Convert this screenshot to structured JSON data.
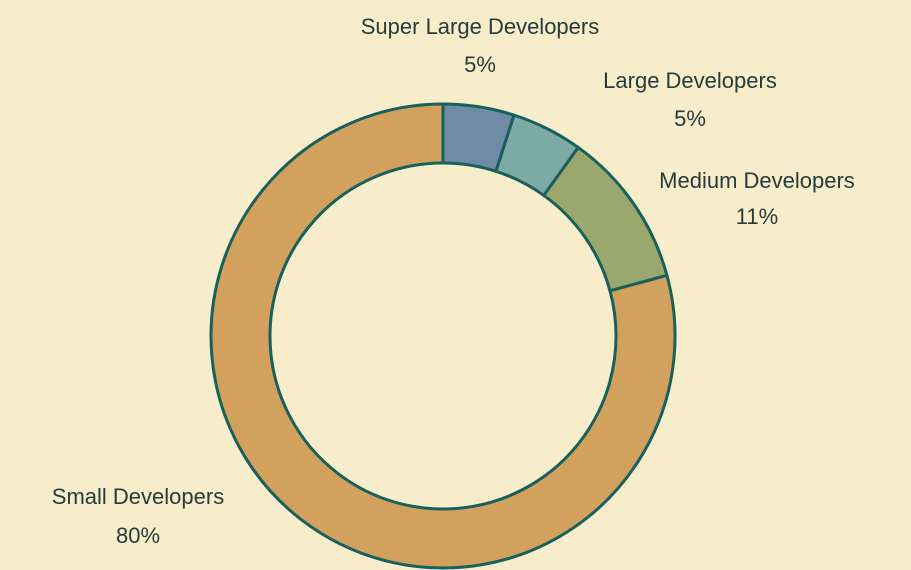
{
  "chart_data": {
    "type": "donut",
    "categories": [
      "Super Large Developers",
      "Large Developers",
      "Medium Developers",
      "Small Developers"
    ],
    "values": [
      5,
      5,
      11,
      80
    ],
    "value_labels": [
      "5%",
      "5%",
      "11%",
      "80%"
    ],
    "colors": [
      "#6f8ba5",
      "#7eaaa6",
      "#9aa86d",
      "#d2a15d"
    ]
  }
}
